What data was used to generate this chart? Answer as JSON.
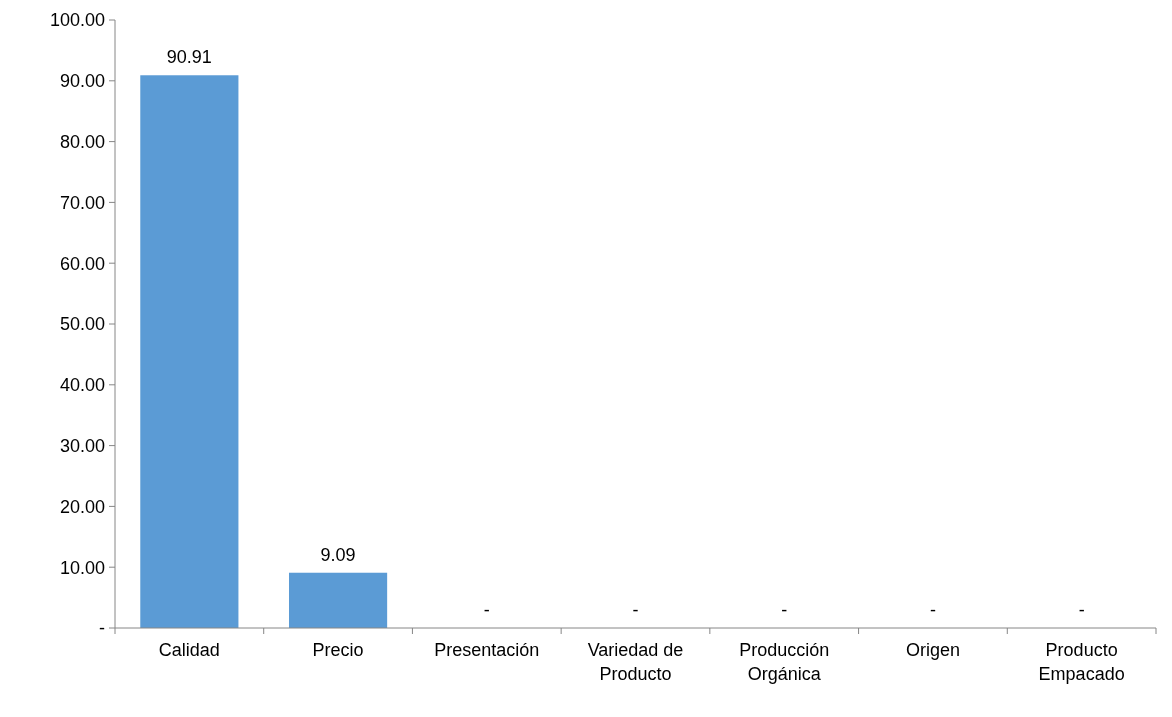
{
  "chart_data": {
    "type": "bar",
    "categories": [
      "Calidad",
      "Precio",
      "Presentación",
      "Variedad de Producto",
      "Producción Orgánica",
      "Origen",
      "Producto Empacado"
    ],
    "values": [
      90.91,
      9.09,
      0,
      0,
      0,
      0,
      0
    ],
    "value_labels": [
      "90.91",
      "9.09",
      "-",
      "-",
      "-",
      "-",
      "-"
    ],
    "color": "#5b9bd5",
    "ylim": [
      0,
      100
    ],
    "yticks": [
      {
        "value": 0,
        "label": "-"
      },
      {
        "value": 10,
        "label": "10.00"
      },
      {
        "value": 20,
        "label": "20.00"
      },
      {
        "value": 30,
        "label": "30.00"
      },
      {
        "value": 40,
        "label": "40.00"
      },
      {
        "value": 50,
        "label": "50.00"
      },
      {
        "value": 60,
        "label": "60.00"
      },
      {
        "value": 70,
        "label": "70.00"
      },
      {
        "value": 80,
        "label": "80.00"
      },
      {
        "value": 90,
        "label": "90.00"
      },
      {
        "value": 100,
        "label": "100.00"
      }
    ],
    "grid": false
  }
}
